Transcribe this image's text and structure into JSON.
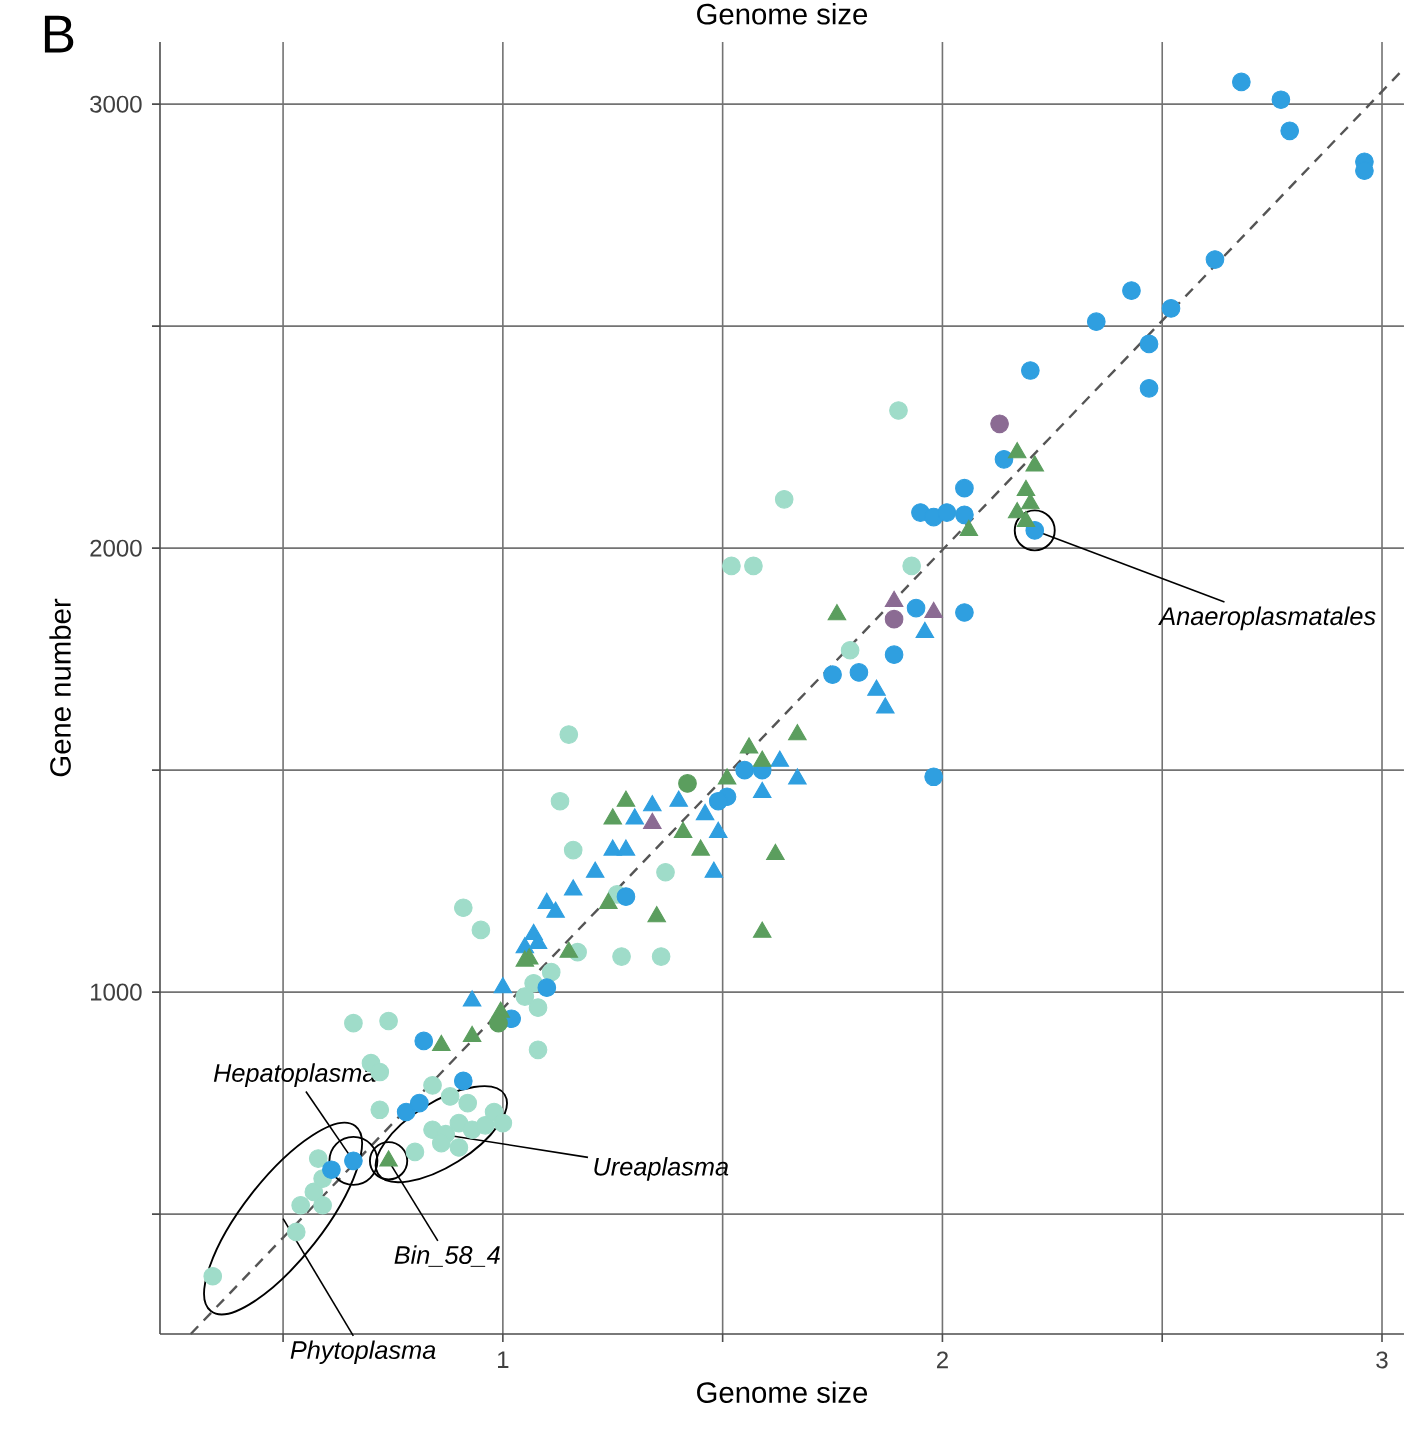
{
  "chart_data": {
    "type": "scatter",
    "title": "Genome size",
    "xlabel": "Genome size",
    "ylabel": "Gene number",
    "xlim": [
      0.22,
      3.05
    ],
    "ylim": [
      230,
      3140
    ],
    "grid": true,
    "xticks": [
      {
        "value": 0.5,
        "label": null
      },
      1,
      {
        "value": 1.5,
        "label": null
      },
      2,
      {
        "value": 2.5,
        "label": null
      },
      3
    ],
    "yticks": [
      {
        "value": 500,
        "label": null
      },
      1000,
      {
        "value": 1500,
        "label": null
      },
      2000,
      {
        "value": 2500,
        "label": null
      },
      3000
    ],
    "series": [
      {
        "color": "#9fdcc9",
        "marker": "circle",
        "x": [
          1.9,
          1.64,
          1.52,
          1.57,
          1.93,
          1.79,
          1.15,
          1.13,
          1.16,
          0.91,
          0.95,
          1.37,
          1.26,
          1.36,
          1.27,
          1.17,
          1.11,
          1.07,
          1.05,
          1.08,
          0.66,
          0.74,
          0.7,
          0.72,
          0.72,
          1.08,
          0.84,
          0.88,
          0.84,
          0.87,
          0.9,
          0.93,
          0.96,
          0.9,
          0.86,
          0.8,
          0.98,
          0.92,
          1.0,
          0.34,
          0.53,
          0.54,
          0.59,
          0.57,
          0.59,
          0.58
        ],
        "values": [
          2310,
          2110,
          1960,
          1960,
          1960,
          1770,
          1580,
          1430,
          1320,
          1190,
          1140,
          1270,
          1220,
          1080,
          1080,
          1090,
          1045,
          1020,
          990,
          965,
          930,
          935,
          840,
          820,
          735,
          870,
          790,
          765,
          690,
          680,
          705,
          690,
          700,
          650,
          660,
          640,
          730,
          750,
          705,
          360,
          460,
          520,
          520,
          550,
          580,
          625
        ]
      },
      {
        "color": "#2f9fe0",
        "marker": "circle",
        "x": [
          2.68,
          2.77,
          2.79,
          2.96,
          2.96,
          2.62,
          2.52,
          2.43,
          2.35,
          2.47,
          2.47,
          2.2,
          2.14,
          2.05,
          1.95,
          1.98,
          2.01,
          2.05,
          2.21,
          1.94,
          2.05,
          1.89,
          1.81,
          1.75,
          1.98,
          1.55,
          1.59,
          1.51,
          1.49,
          1.28,
          1.1,
          0.82,
          0.91,
          0.78,
          0.81,
          1.02,
          0.66,
          0.61
        ],
        "values": [
          3050,
          3010,
          2940,
          2870,
          2850,
          2650,
          2540,
          2580,
          2510,
          2460,
          2360,
          2400,
          2200,
          2135,
          2080,
          2070,
          2080,
          2075,
          2040,
          1865,
          1855,
          1760,
          1720,
          1715,
          1485,
          1500,
          1500,
          1440,
          1430,
          1215,
          1010,
          890,
          800,
          730,
          750,
          940,
          620,
          600
        ]
      },
      {
        "color": "#2f9fe0",
        "marker": "triangle",
        "x": [
          1.34,
          1.4,
          1.46,
          1.49,
          1.48,
          1.59,
          1.67,
          1.63,
          1.3,
          1.25,
          1.28,
          1.21,
          1.16,
          1.1,
          1.12,
          1.07,
          1.05,
          1.0,
          0.93,
          1.08,
          1.96,
          1.85,
          1.87
        ],
        "values": [
          1420,
          1430,
          1400,
          1360,
          1270,
          1450,
          1480,
          1520,
          1390,
          1320,
          1320,
          1270,
          1230,
          1200,
          1180,
          1130,
          1100,
          1010,
          980,
          1110,
          1810,
          1680,
          1640
        ]
      },
      {
        "color": "#5b9e5e",
        "marker": "triangle",
        "x": [
          2.17,
          2.21,
          2.19,
          2.2,
          2.17,
          2.19,
          2.06,
          1.76,
          1.67,
          1.56,
          1.59,
          1.62,
          1.28,
          1.25,
          1.41,
          1.45,
          1.59,
          1.35,
          1.24,
          1.15,
          1.06,
          1.51,
          0.86,
          0.93,
          0.995,
          1.05,
          0.74
        ],
        "values": [
          2215,
          2185,
          2130,
          2100,
          2080,
          2060,
          2040,
          1850,
          1580,
          1550,
          1520,
          1310,
          1430,
          1390,
          1360,
          1320,
          1135,
          1170,
          1200,
          1090,
          1075,
          1480,
          880,
          900,
          955,
          1070,
          620
        ]
      },
      {
        "color": "#5b9e5e",
        "marker": "circle",
        "x": [
          0.99,
          1.42
        ],
        "values": [
          930,
          1470
        ]
      },
      {
        "color": "#8b6b93",
        "marker": "circle",
        "x": [
          2.13,
          1.89
        ],
        "values": [
          2280,
          1840
        ]
      },
      {
        "color": "#8b6b93",
        "marker": "triangle",
        "x": [
          1.89,
          1.98,
          1.34
        ],
        "values": [
          1880,
          1855,
          1380
        ]
      },
      {
        "type": "line",
        "color": "#555555",
        "marker": "none",
        "line_style": "dashed",
        "x": [
          0.29,
          3.04
        ],
        "values": [
          230,
          3070
        ]
      }
    ],
    "annotations": [
      "B",
      {
        "text": "Hepatoplasma",
        "x": 0.66,
        "y": 620
      },
      {
        "text": "Ureaplasma",
        "x": 0.86,
        "y": 680
      },
      {
        "text": "Bin_58_4",
        "x": 0.74,
        "y": 620
      },
      {
        "text": "Phytoplasma",
        "x": 0.5,
        "y": 490
      },
      {
        "text": "Anaeroplasmatales",
        "x": 2.21,
        "y": 2040
      }
    ]
  }
}
